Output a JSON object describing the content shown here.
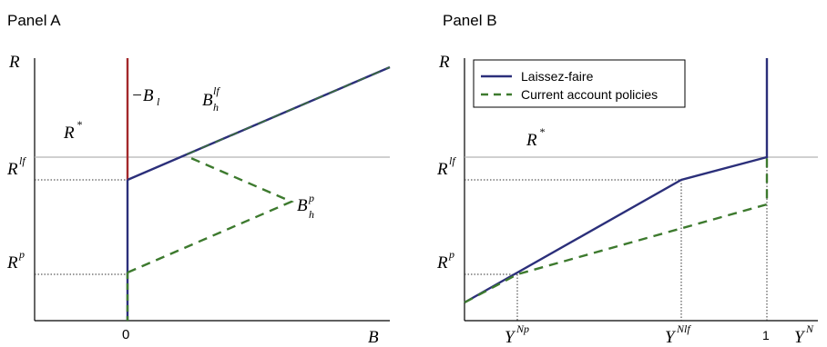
{
  "colors": {
    "laissez_faire": "#2b2f7a",
    "policy": "#3d7a2e",
    "constraint": "#a3282b",
    "axis": "#000000",
    "reference": "#b5b5b5",
    "dotted": "#333333"
  },
  "panel_a": {
    "title": "Panel A",
    "y_axis": "R",
    "x_axis": "B",
    "zero_tick": "0",
    "r_star": "R",
    "r_star_sup": "*",
    "neg_bl": "−B",
    "neg_bl_sub": "l",
    "bh_lf": "B",
    "bh_lf_sub": "h",
    "bh_lf_sup": "lf",
    "bh_p": "B",
    "bh_p_sub": "h",
    "bh_p_sup": "p",
    "r_lf": "R",
    "r_lf_sup": "lf",
    "r_p": "R",
    "r_p_sup": "p"
  },
  "panel_b": {
    "title": "Panel B",
    "y_axis": "R",
    "x_axis": "Y",
    "x_axis_sup": "N",
    "r_star": "R",
    "r_star_sup": "*",
    "r_lf": "R",
    "r_lf_sup": "lf",
    "r_p": "R",
    "r_p_sup": "p",
    "y_np": "Y",
    "y_np_sup": "Np",
    "y_nlf": "Y",
    "y_nlf_sup": "Nlf",
    "one_tick": "1",
    "legend": {
      "laissez_faire": "Laissez-faire",
      "policies": "Current account policies"
    }
  }
}
